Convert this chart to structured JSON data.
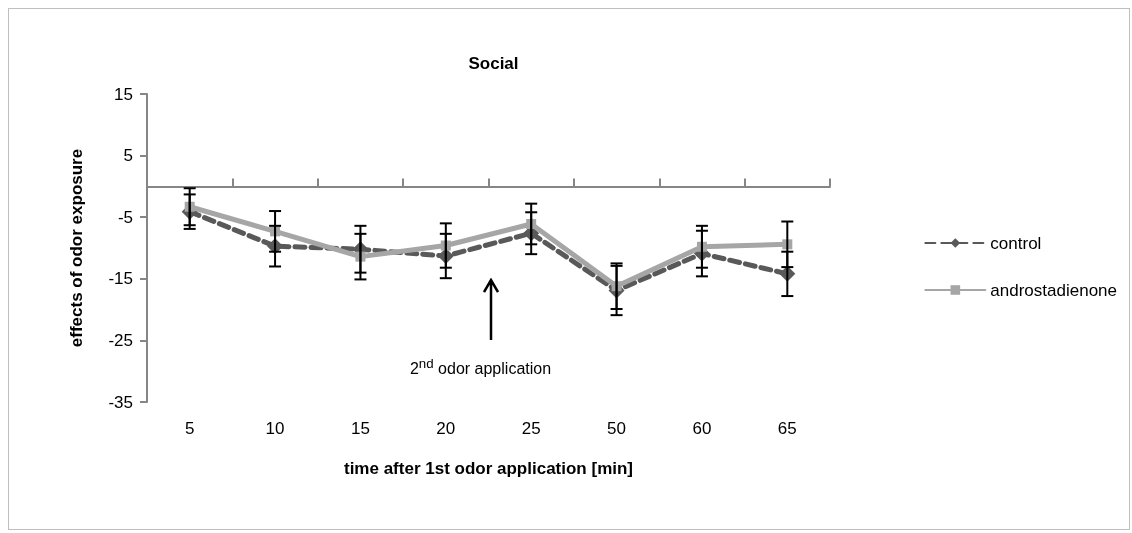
{
  "chart_data": {
    "type": "line",
    "title": "Social",
    "xlabel": "time after 1st odor application [min]",
    "ylabel": "effects of odor exposure",
    "categories": [
      "5",
      "10",
      "15",
      "20",
      "25",
      "50",
      "60",
      "65"
    ],
    "series": [
      {
        "name": "control",
        "color": "#595959",
        "line_style": "dashed",
        "marker": "diamond",
        "values": [
          -4.1,
          -9.7,
          -10.2,
          -11.3,
          -7.6,
          -16.9,
          -10.9,
          -14.2
        ],
        "errors": [
          2.8,
          3.3,
          3.8,
          3.6,
          3.4,
          4.0,
          3.7,
          3.6
        ]
      },
      {
        "name": "androstadienone",
        "color": "#a6a6a6",
        "line_style": "solid",
        "marker": "square",
        "values": [
          -3.3,
          -7.3,
          -11.4,
          -9.6,
          -6.1,
          -16.2,
          -9.8,
          -9.4
        ],
        "errors": [
          3.0,
          3.3,
          3.7,
          3.6,
          3.3,
          3.7,
          3.4,
          3.7
        ]
      }
    ],
    "ylim": [
      -35,
      15
    ],
    "yticks": [
      -35,
      -25,
      -15,
      -5,
      5,
      15
    ],
    "grid": false,
    "legend": "right",
    "annotations": [
      "2$^{nd}$ odor application"
    ]
  }
}
